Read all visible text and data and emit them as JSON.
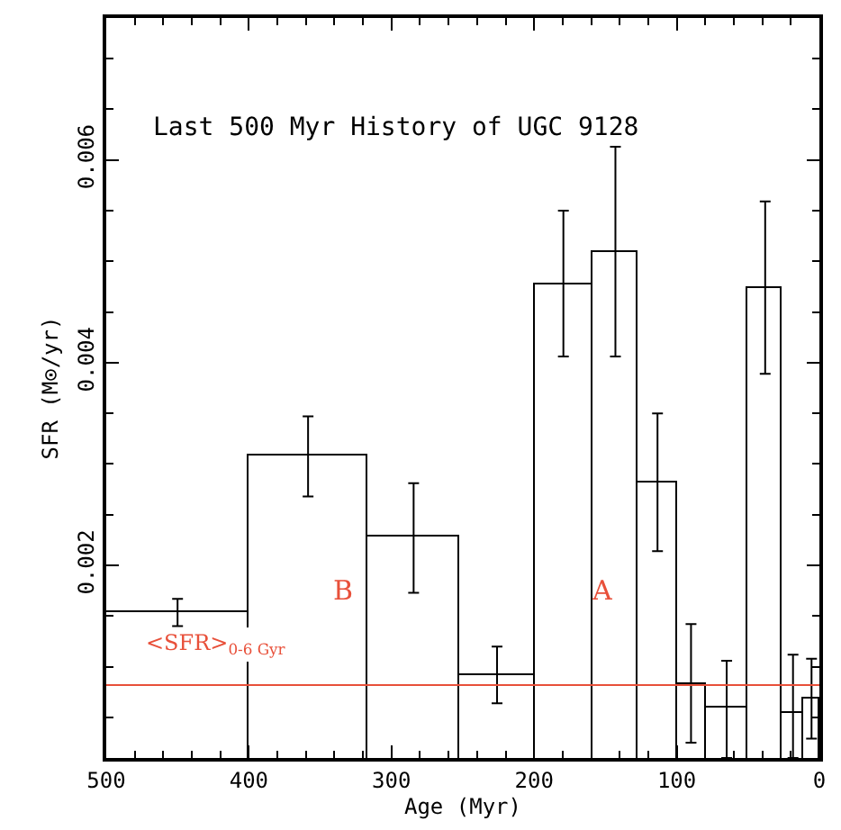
{
  "chart_data": {
    "type": "histogram",
    "title": "Last 500 Myr History of UGC 9128",
    "xlabel": "Age (Myr)",
    "ylabel": "SFR (M⊙/yr)",
    "bins": [
      500,
      400,
      317,
      252,
      200,
      159,
      127,
      100,
      80,
      50,
      26,
      11,
      0
    ],
    "values": [
      0.00153,
      0.00308,
      0.00228,
      0.00092,
      0.00478,
      0.00509,
      0.00281,
      0.00083,
      0.00059,
      0.00473,
      0.00055,
      0.00068
    ],
    "errors": [
      [
        0.0014,
        0.00167
      ],
      [
        0.00268,
        0.00347
      ],
      [
        0.00173,
        0.00281
      ],
      [
        0.00064,
        0.0012
      ],
      [
        0.00406,
        0.0055
      ],
      [
        0.00406,
        0.00613
      ],
      [
        0.00214,
        0.0035
      ],
      [
        0.00025,
        0.00142
      ],
      [
        0.0001,
        0.00106
      ],
      [
        0.00389,
        0.00559
      ],
      [
        0.0001,
        0.00112
      ],
      [
        0.00029,
        0.00108
      ]
    ],
    "color": "#000000",
    "xlim": [
      500,
      0
    ],
    "xticks": [
      500,
      400,
      300,
      200,
      100,
      0
    ],
    "ylim": [
      0.0001,
      0.0074
    ],
    "yticks": [
      0.002,
      0.004,
      0.006
    ],
    "ref_lines": [
      {
        "axis": "y",
        "value": 0.00082,
        "label": "<SFR>$_{0-6 Gyr}$",
        "color": "#e8503a"
      }
    ],
    "annotations": [
      "B",
      "A"
    ],
    "tick_labels": "xy"
  }
}
